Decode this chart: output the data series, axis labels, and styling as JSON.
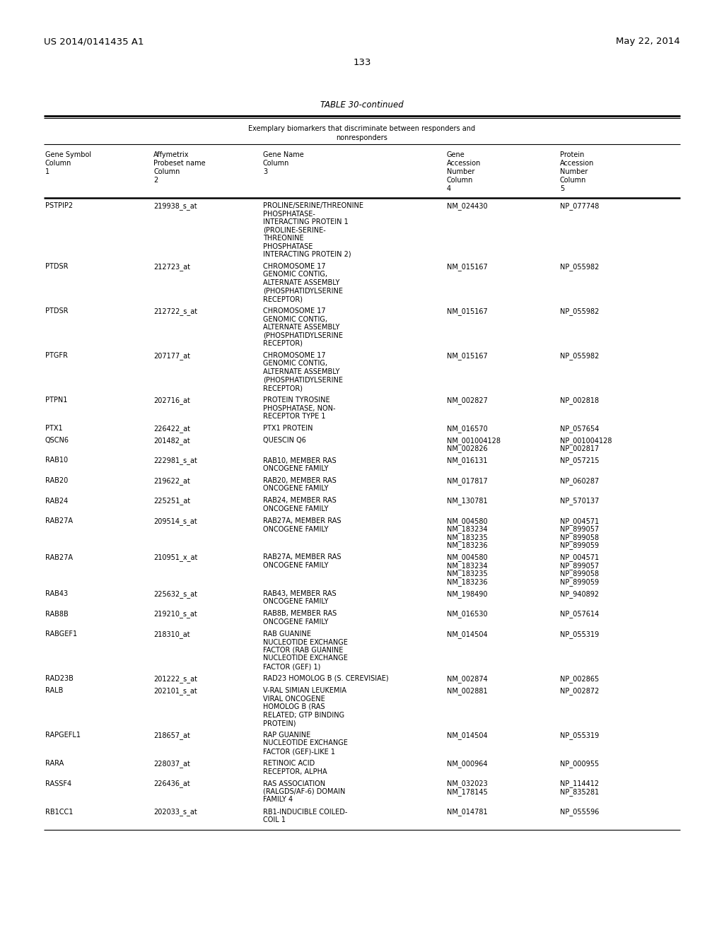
{
  "header_left": "US 2014/0141435 A1",
  "header_right": "May 22, 2014",
  "page_number": "133",
  "table_title": "TABLE 30-continued",
  "table_subtitle_line1": "Exemplary biomarkers that discriminate between responders and",
  "table_subtitle_line2": "nonresponders",
  "col_headers": [
    [
      "Gene Symbol",
      "Column",
      "1"
    ],
    [
      "Affymetrix",
      "Probeset name",
      "Column",
      "2"
    ],
    [
      "Gene Name",
      "Column",
      "3"
    ],
    [
      "Gene",
      "Accession",
      "Number",
      "Column",
      "4"
    ],
    [
      "Protein",
      "Accession",
      "Number",
      "Column",
      "5"
    ]
  ],
  "rows": [
    {
      "gene_symbol": "PSTPIP2",
      "probeset": "219938_s_at",
      "gene_name": [
        "PROLINE/SERINE/THREONINE",
        "PHOSPHATASE-",
        "INTERACTING PROTEIN 1",
        "(PROLINE-SERINE-",
        "THREONINE",
        "PHOSPHATASE",
        "INTERACTING PROTEIN 2)"
      ],
      "accessions": [
        [
          "NM_024430",
          "NP_077748"
        ]
      ]
    },
    {
      "gene_symbol": "PTDSR",
      "probeset": "212723_at",
      "gene_name": [
        "CHROMOSOME 17",
        "GENOMIC CONTIG,",
        "ALTERNATE ASSEMBLY",
        "(PHOSPHATIDYLSERINE",
        "RECEPTOR)"
      ],
      "accessions": [
        [
          "NM_015167",
          "NP_055982"
        ]
      ]
    },
    {
      "gene_symbol": "PTDSR",
      "probeset": "212722_s_at",
      "gene_name": [
        "CHROMOSOME 17",
        "GENOMIC CONTIG,",
        "ALTERNATE ASSEMBLY",
        "(PHOSPHATIDYLSERINE",
        "RECEPTOR)"
      ],
      "accessions": [
        [
          "NM_015167",
          "NP_055982"
        ]
      ]
    },
    {
      "gene_symbol": "PTGFR",
      "probeset": "207177_at",
      "gene_name": [
        "CHROMOSOME 17",
        "GENOMIC CONTIG,",
        "ALTERNATE ASSEMBLY",
        "(PHOSPHATIDYLSERINE",
        "RECEPTOR)"
      ],
      "accessions": [
        [
          "NM_015167",
          "NP_055982"
        ]
      ]
    },
    {
      "gene_symbol": "PTPN1",
      "probeset": "202716_at",
      "gene_name": [
        "PROTEIN TYROSINE",
        "PHOSPHATASE, NON-",
        "RECEPTOR TYPE 1"
      ],
      "accessions": [
        [
          "NM_002827",
          "NP_002818"
        ]
      ]
    },
    {
      "gene_symbol": "PTX1",
      "probeset": "226422_at",
      "gene_name": [
        "PTX1 PROTEIN"
      ],
      "accessions": [
        [
          "NM_016570",
          "NP_057654"
        ]
      ]
    },
    {
      "gene_symbol": "QSCN6",
      "probeset": "201482_at",
      "gene_name": [
        "QUESCIN Q6"
      ],
      "accessions": [
        [
          "NM_001004128",
          "NP_001004128"
        ],
        [
          "NM_002826",
          "NP_002817"
        ]
      ]
    },
    {
      "gene_symbol": "RAB10",
      "probeset": "222981_s_at",
      "gene_name": [
        "RAB10, MEMBER RAS",
        "ONCOGENE FAMILY"
      ],
      "accessions": [
        [
          "NM_016131",
          "NP_057215"
        ]
      ]
    },
    {
      "gene_symbol": "RAB20",
      "probeset": "219622_at",
      "gene_name": [
        "RAB20, MEMBER RAS",
        "ONCOGENE FAMILY"
      ],
      "accessions": [
        [
          "NM_017817",
          "NP_060287"
        ]
      ]
    },
    {
      "gene_symbol": "RAB24",
      "probeset": "225251_at",
      "gene_name": [
        "RAB24, MEMBER RAS",
        "ONCOGENE FAMILY"
      ],
      "accessions": [
        [
          "NM_130781",
          "NP_570137"
        ]
      ]
    },
    {
      "gene_symbol": "RAB27A",
      "probeset": "209514_s_at",
      "gene_name": [
        "RAB27A, MEMBER RAS",
        "ONCOGENE FAMILY"
      ],
      "accessions": [
        [
          "NM_004580",
          "NP_004571"
        ],
        [
          "NM_183234",
          "NP_899057"
        ],
        [
          "NM_183235",
          "NP_899058"
        ],
        [
          "NM_183236",
          "NP_899059"
        ]
      ]
    },
    {
      "gene_symbol": "RAB27A",
      "probeset": "210951_x_at",
      "gene_name": [
        "RAB27A, MEMBER RAS",
        "ONCOGENE FAMILY"
      ],
      "accessions": [
        [
          "NM_004580",
          "NP_004571"
        ],
        [
          "NM_183234",
          "NP_899057"
        ],
        [
          "NM_183235",
          "NP_899058"
        ],
        [
          "NM_183236",
          "NP_899059"
        ]
      ]
    },
    {
      "gene_symbol": "RAB43",
      "probeset": "225632_s_at",
      "gene_name": [
        "RAB43, MEMBER RAS",
        "ONCOGENE FAMILY"
      ],
      "accessions": [
        [
          "NM_198490",
          "NP_940892"
        ]
      ]
    },
    {
      "gene_symbol": "RAB8B",
      "probeset": "219210_s_at",
      "gene_name": [
        "RAB8B, MEMBER RAS",
        "ONCOGENE FAMILY"
      ],
      "accessions": [
        [
          "NM_016530",
          "NP_057614"
        ]
      ]
    },
    {
      "gene_symbol": "RABGEF1",
      "probeset": "218310_at",
      "gene_name": [
        "RAB GUANINE",
        "NUCLEOTIDE EXCHANGE",
        "FACTOR (RAB GUANINE",
        "NUCLEOTIDE EXCHANGE",
        "FACTOR (GEF) 1)"
      ],
      "accessions": [
        [
          "NM_014504",
          "NP_055319"
        ]
      ]
    },
    {
      "gene_symbol": "RAD23B",
      "probeset": "201222_s_at",
      "gene_name": [
        "RAD23 HOMOLOG B (S. CEREVISIAE)"
      ],
      "accessions": [
        [
          "NM_002874",
          "NP_002865"
        ]
      ]
    },
    {
      "gene_symbol": "RALB",
      "probeset": "202101_s_at",
      "gene_name": [
        "V-RAL SIMIAN LEUKEMIA",
        "VIRAL ONCOGENE",
        "HOMOLOG B (RAS",
        "RELATED; GTP BINDING",
        "PROTEIN)"
      ],
      "accessions": [
        [
          "NM_002881",
          "NP_002872"
        ]
      ]
    },
    {
      "gene_symbol": "RAPGEFL1",
      "probeset": "218657_at",
      "gene_name": [
        "RAP GUANINE",
        "NUCLEOTIDE EXCHANGE",
        "FACTOR (GEF)-LIKE 1"
      ],
      "accessions": [
        [
          "NM_014504",
          "NP_055319"
        ]
      ]
    },
    {
      "gene_symbol": "RARA",
      "probeset": "228037_at",
      "gene_name": [
        "RETINOIC ACID",
        "RECEPTOR, ALPHA"
      ],
      "accessions": [
        [
          "NM_000964",
          "NP_000955"
        ]
      ]
    },
    {
      "gene_symbol": "RASSF4",
      "probeset": "226436_at",
      "gene_name": [
        "RAS ASSOCIATION",
        "(RALGDS/AF-6) DOMAIN",
        "FAMILY 4"
      ],
      "accessions": [
        [
          "NM_032023",
          "NP_114412"
        ],
        [
          "NM_178145",
          "NP_835281"
        ]
      ]
    },
    {
      "gene_symbol": "RB1CC1",
      "probeset": "202033_s_at",
      "gene_name": [
        "RB1-INDUCIBLE COILED-",
        "COIL 1"
      ],
      "accessions": [
        [
          "NM_014781",
          "NP_055596"
        ]
      ]
    }
  ],
  "bg_color": "#ffffff",
  "text_color": "#000000",
  "font_size": 7.0,
  "title_font_size": 8.5,
  "header_font_size": 9.5
}
